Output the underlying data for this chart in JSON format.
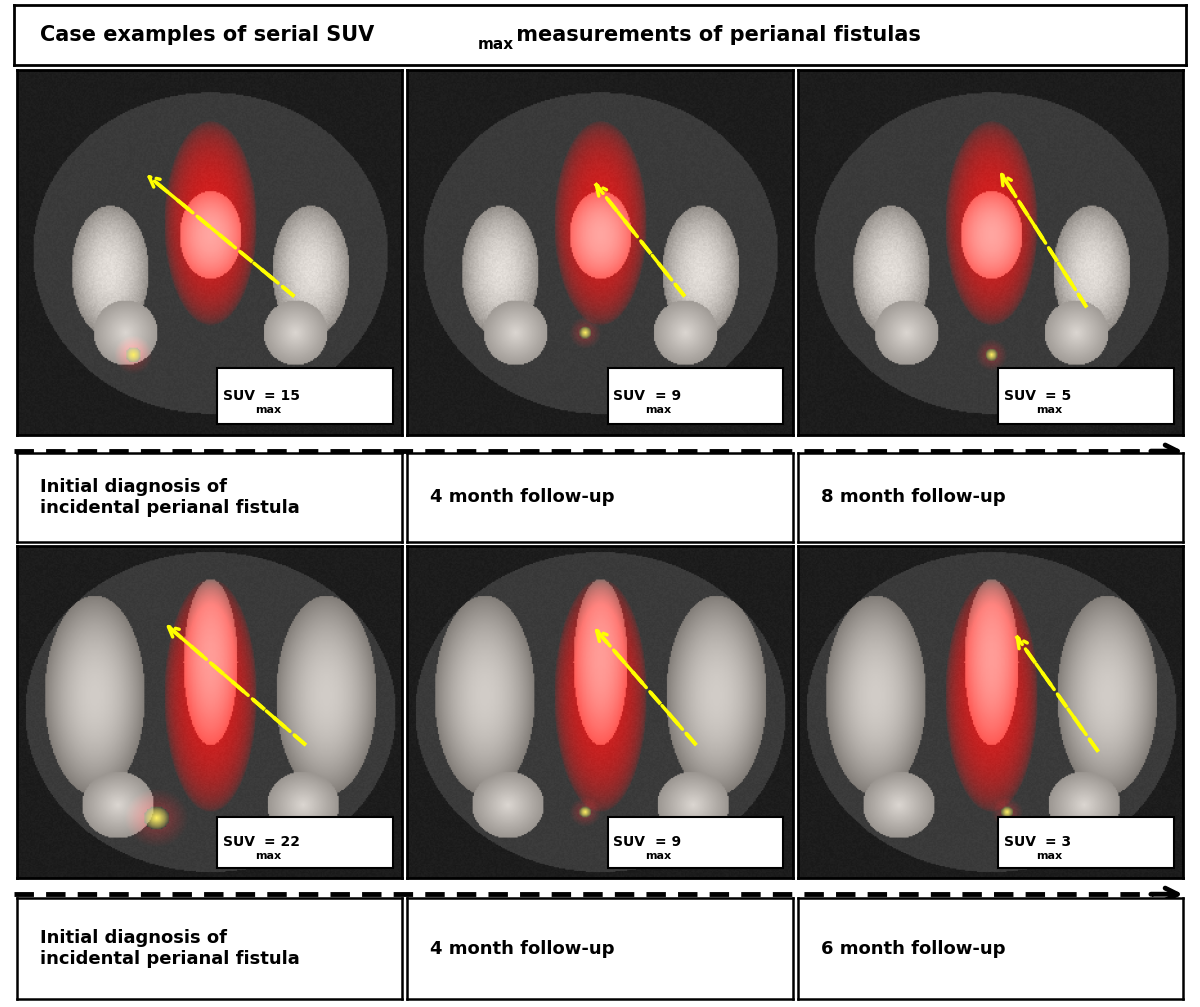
{
  "title_text": "Case examples of serial SUV",
  "title_sub": "max",
  "title_suffix": " measurements of perianal fistulas",
  "row1_suv_values": [
    "= 15",
    "= 9",
    "= 5"
  ],
  "row2_suv_values": [
    "= 22",
    "= 9",
    "= 3"
  ],
  "row1_labels": [
    "Initial diagnosis of\nincidental perianal fistula",
    "4 month follow-up",
    "8 month follow-up"
  ],
  "row2_labels": [
    "Initial diagnosis of\nincidental perianal fistula",
    "4 month follow-up",
    "6 month follow-up"
  ],
  "bg": "#ffffff",
  "border": "#000000",
  "arrow_color": "#ffff00",
  "title_fs": 15,
  "label_fs": 13,
  "suv_fs": 10,
  "suv_sub_fs": 8
}
